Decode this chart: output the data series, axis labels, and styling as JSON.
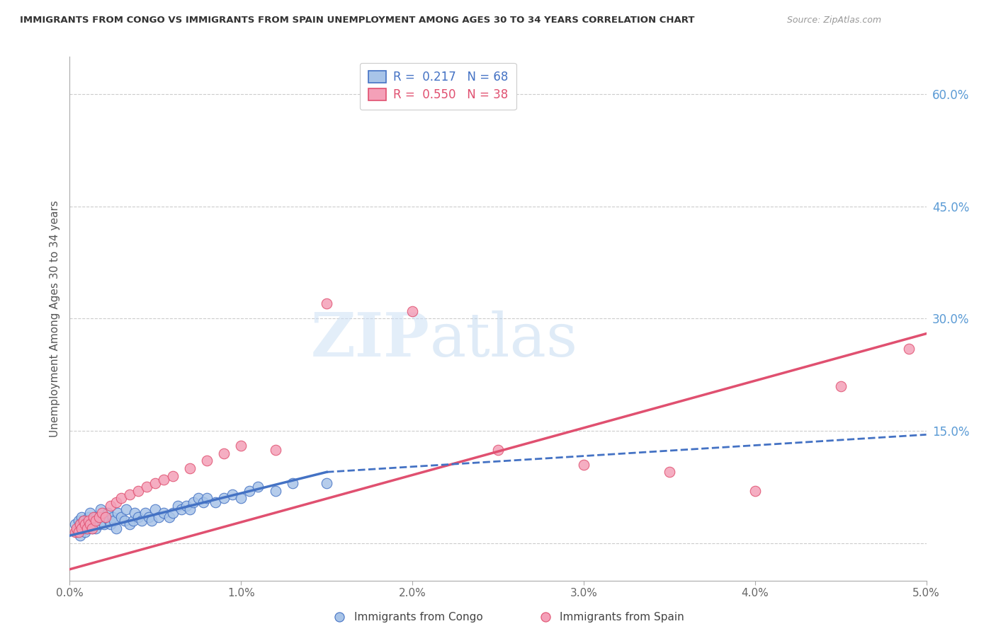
{
  "title": "IMMIGRANTS FROM CONGO VS IMMIGRANTS FROM SPAIN UNEMPLOYMENT AMONG AGES 30 TO 34 YEARS CORRELATION CHART",
  "source": "Source: ZipAtlas.com",
  "ylabel_left": "Unemployment Among Ages 30 to 34 years",
  "x_tick_labels": [
    "0.0%",
    "1.0%",
    "2.0%",
    "3.0%",
    "4.0%",
    "5.0%"
  ],
  "x_ticks": [
    0.0,
    1.0,
    2.0,
    3.0,
    4.0,
    5.0
  ],
  "y_right_ticks": [
    0.0,
    15.0,
    30.0,
    45.0,
    60.0
  ],
  "y_right_labels": [
    "",
    "15.0%",
    "30.0%",
    "45.0%",
    "60.0%"
  ],
  "xlim": [
    0.0,
    5.0
  ],
  "ylim": [
    -5.0,
    65.0
  ],
  "legend_label1": "Immigrants from Congo",
  "legend_label2": "Immigrants from Spain",
  "R1": 0.217,
  "N1": 68,
  "R2": 0.55,
  "N2": 38,
  "color_congo_fill": "#a8c4e8",
  "color_congo_edge": "#4472c4",
  "color_spain_fill": "#f4a0b8",
  "color_spain_edge": "#e05070",
  "color_right_axis": "#5b9bd5",
  "watermark_zip": "ZIP",
  "watermark_atlas": "atlas",
  "congo_x": [
    0.03,
    0.04,
    0.05,
    0.05,
    0.06,
    0.06,
    0.07,
    0.07,
    0.08,
    0.08,
    0.09,
    0.09,
    0.1,
    0.1,
    0.11,
    0.12,
    0.12,
    0.13,
    0.13,
    0.14,
    0.15,
    0.15,
    0.16,
    0.17,
    0.18,
    0.19,
    0.2,
    0.21,
    0.22,
    0.23,
    0.24,
    0.25,
    0.26,
    0.27,
    0.28,
    0.3,
    0.32,
    0.33,
    0.35,
    0.37,
    0.38,
    0.4,
    0.42,
    0.44,
    0.46,
    0.48,
    0.5,
    0.52,
    0.55,
    0.58,
    0.6,
    0.63,
    0.65,
    0.68,
    0.7,
    0.72,
    0.75,
    0.78,
    0.8,
    0.85,
    0.9,
    0.95,
    1.0,
    1.05,
    1.1,
    1.2,
    1.3,
    1.5
  ],
  "congo_y": [
    2.5,
    1.5,
    3.0,
    2.0,
    2.5,
    1.0,
    3.5,
    2.5,
    2.0,
    3.0,
    2.5,
    1.5,
    3.0,
    2.0,
    3.5,
    2.5,
    4.0,
    2.0,
    3.0,
    2.5,
    3.5,
    2.0,
    3.0,
    2.5,
    4.5,
    3.0,
    2.5,
    3.5,
    4.0,
    3.0,
    2.5,
    3.5,
    3.0,
    2.0,
    4.0,
    3.5,
    3.0,
    4.5,
    2.5,
    3.0,
    4.0,
    3.5,
    3.0,
    4.0,
    3.5,
    3.0,
    4.5,
    3.5,
    4.0,
    3.5,
    4.0,
    5.0,
    4.5,
    5.0,
    4.5,
    5.5,
    6.0,
    5.5,
    6.0,
    5.5,
    6.0,
    6.5,
    6.0,
    7.0,
    7.5,
    7.0,
    8.0,
    8.0
  ],
  "spain_x": [
    0.03,
    0.04,
    0.05,
    0.06,
    0.07,
    0.08,
    0.09,
    0.1,
    0.11,
    0.12,
    0.13,
    0.14,
    0.15,
    0.17,
    0.19,
    0.21,
    0.24,
    0.27,
    0.3,
    0.35,
    0.4,
    0.45,
    0.5,
    0.55,
    0.6,
    0.7,
    0.8,
    0.9,
    1.0,
    1.2,
    1.5,
    2.0,
    2.5,
    3.0,
    3.5,
    4.0,
    4.5,
    4.9
  ],
  "spain_y": [
    1.5,
    2.0,
    1.5,
    2.5,
    2.0,
    3.0,
    2.5,
    2.0,
    3.0,
    2.5,
    2.0,
    3.5,
    3.0,
    3.5,
    4.0,
    3.5,
    5.0,
    5.5,
    6.0,
    6.5,
    7.0,
    7.5,
    8.0,
    8.5,
    9.0,
    10.0,
    11.0,
    12.0,
    13.0,
    12.5,
    32.0,
    31.0,
    12.5,
    10.5,
    9.5,
    7.0,
    21.0,
    26.0
  ],
  "congo_line_x0": 0.0,
  "congo_line_y0": 1.0,
  "congo_line_x1": 1.5,
  "congo_line_y1": 9.5,
  "congo_dash_x0": 1.5,
  "congo_dash_y0": 9.5,
  "congo_dash_x1": 5.0,
  "congo_dash_y1": 14.5,
  "spain_line_x0": 0.0,
  "spain_line_y0": -3.5,
  "spain_line_x1": 5.0,
  "spain_line_y1": 28.0
}
